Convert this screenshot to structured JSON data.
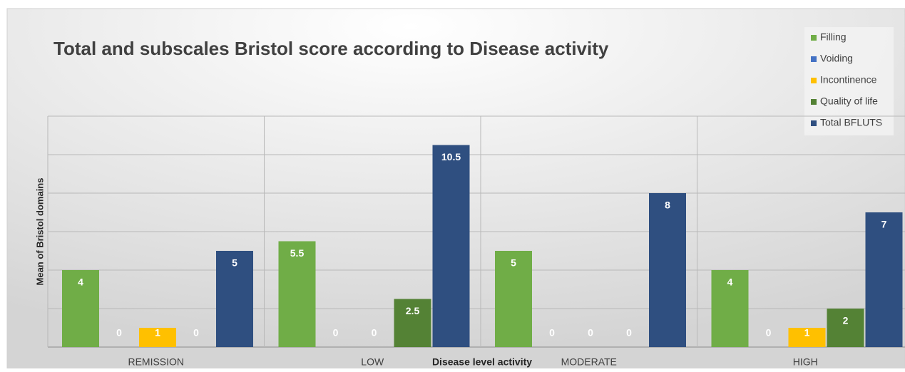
{
  "chart_data": {
    "type": "bar",
    "title": "Total and subscales Bristol score according to Disease activity",
    "x_label": "Disease level activity",
    "y_label": "Mean of Bristol domains",
    "categories": [
      "REMISSION",
      "LOW",
      "MODERATE",
      "HIGH"
    ],
    "series": [
      {
        "name": "Filling",
        "color": "#70ad47",
        "values": [
          4,
          5.5,
          5,
          4
        ]
      },
      {
        "name": "Voiding",
        "color": "#4472c4",
        "values": [
          0,
          0,
          0,
          0
        ]
      },
      {
        "name": "Incontinence",
        "color": "#ffc000",
        "values": [
          1,
          0,
          0,
          1
        ]
      },
      {
        "name": "Quality of life",
        "color": "#548235",
        "values": [
          0,
          2.5,
          0,
          2
        ]
      },
      {
        "name": "Total BFLUTS",
        "color": "#2f4f80",
        "values": [
          5,
          10.5,
          8,
          7
        ]
      }
    ],
    "ylim": [
      0,
      12
    ],
    "yticks": [
      0,
      2,
      4,
      6,
      8,
      10,
      12
    ],
    "grid": true
  }
}
